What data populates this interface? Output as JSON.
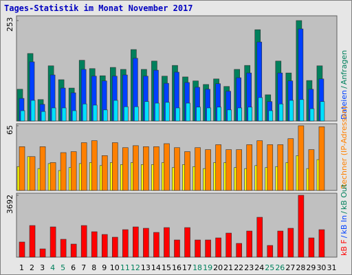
{
  "chart_data": {
    "type": "bar",
    "title": "Tages-Statistik im Monat November 2017",
    "categories": [
      "1",
      "2",
      "3",
      "4",
      "5",
      "6",
      "7",
      "8",
      "9",
      "10",
      "11",
      "12",
      "13",
      "14",
      "15",
      "16",
      "17",
      "18",
      "19",
      "20",
      "21",
      "22",
      "23",
      "24",
      "25",
      "26",
      "27",
      "28",
      "29",
      "30",
      "31"
    ],
    "category_colors": [
      "#000000",
      "#000000",
      "#000000",
      "#00805c",
      "#00805c",
      "#000000",
      "#000000",
      "#000000",
      "#000000",
      "#000000",
      "#00805c",
      "#00805c",
      "#000000",
      "#000000",
      "#000000",
      "#000000",
      "#000000",
      "#00805c",
      "#00805c",
      "#000000",
      "#000000",
      "#000000",
      "#000000",
      "#000000",
      "#00805c",
      "#00805c",
      "#000000",
      "#000000",
      "#000000",
      "#000000",
      "#000000"
    ],
    "legend_separator": "/",
    "panels": [
      {
        "ylim": [
          0,
          265
        ],
        "yticks": [
          253
        ],
        "series": [
          {
            "name": "Anfragen",
            "color": "#00805c",
            "values": [
              80,
              170,
              54,
              139,
              104,
              83,
              153,
              132,
              114,
              135,
              130,
              180,
              130,
              151,
              113,
              140,
              111,
              101,
              92,
              106,
              87,
              130,
              140,
              230,
              66,
              151,
              121,
              253,
              102,
              139,
              null
            ]
          },
          {
            "name": "Dateien",
            "color": "#0040ff",
            "values": [
              57,
              149,
              42,
              116,
              83,
              71,
              130,
              113,
              101,
              113,
              116,
              158,
              113,
              128,
              95,
              123,
              97,
              85,
              80,
              94,
              75,
              109,
              121,
              199,
              49,
              121,
              101,
              232,
              80,
              106,
              null
            ]
          },
          {
            "color": "#00e0ff",
            "values": [
              26,
              52,
              24,
              33,
              33,
              26,
              43,
              40,
              28,
              52,
              36,
              36,
              49,
              45,
              47,
              33,
              45,
              35,
              33,
              35,
              28,
              33,
              35,
              59,
              26,
              43,
              52,
              54,
              31,
              49,
              null
            ]
          }
        ]
      },
      {
        "ylim": [
          0,
          67
        ],
        "yticks": [
          65
        ],
        "series": [
          {
            "color": "#ffff00",
            "values": [
              24,
              34,
              22,
              27,
              20,
              23,
              27,
              28,
              25,
              28,
              26,
              28,
              26,
              26,
              28,
              23,
              26,
              24,
              22,
              28,
              28,
              23,
              22,
              25,
              23,
              24,
              28,
              35,
              22,
              31,
              null
            ]
          },
          {
            "name": "Rechner (IP-Adressen)",
            "color": "#ff8000",
            "values": [
              44,
              34,
              44,
              28,
              38,
              39,
              48,
              50,
              35,
              48,
              43,
              45,
              44,
              44,
              47,
              43,
              39,
              43,
              41,
              46,
              41,
              41,
              46,
              50,
              46,
              46,
              52,
              65,
              41,
              64,
              null
            ]
          }
        ]
      },
      {
        "ylim": [
          0,
          3815
        ],
        "yticks": [
          3692
        ],
        "series": [
          {
            "name": "kB Out",
            "color": "#00805c"
          },
          {
            "name": "kB In",
            "color": "#0040ff"
          },
          {
            "name": "kB F",
            "color": "#ff0000",
            "values": [
              902,
              1886,
              492,
              1804,
              1066,
              779,
              1886,
              1517,
              1353,
              1189,
              1640,
              1804,
              1722,
              1476,
              1763,
              1025,
              1763,
              1025,
              1025,
              1148,
              1435,
              820,
              1558,
              2378,
              697,
              1558,
              1722,
              3692,
              1148,
              1640,
              null
            ]
          }
        ]
      }
    ]
  }
}
